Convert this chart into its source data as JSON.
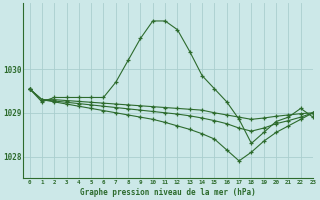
{
  "title": "Graphe pression niveau de la mer (hPa)",
  "background_color": "#cce8e8",
  "grid_color": "#aacece",
  "line_color": "#2d6b2d",
  "xlim": [
    -0.5,
    23
  ],
  "ylim": [
    1027.5,
    1031.5
  ],
  "yticks": [
    1028,
    1029,
    1030
  ],
  "xticks": [
    0,
    1,
    2,
    3,
    4,
    5,
    6,
    7,
    8,
    9,
    10,
    11,
    12,
    13,
    14,
    15,
    16,
    17,
    18,
    19,
    20,
    21,
    22,
    23
  ],
  "curves": [
    {
      "x": [
        0,
        1,
        2,
        3,
        4,
        5,
        6,
        7,
        8,
        9,
        10,
        11,
        12,
        13,
        14,
        15,
        16,
        17,
        18,
        19,
        20,
        21,
        22,
        23
      ],
      "y": [
        1029.55,
        1029.25,
        1029.35,
        1029.35,
        1029.35,
        1029.35,
        1029.35,
        1029.7,
        1030.2,
        1030.7,
        1031.1,
        1031.1,
        1030.9,
        1030.4,
        1029.85,
        1029.55,
        1029.25,
        1028.85,
        1028.3,
        1028.55,
        1028.8,
        1028.9,
        1029.1,
        1028.9
      ]
    },
    {
      "x": [
        0,
        1,
        2,
        3,
        4,
        5,
        6,
        7,
        8,
        9,
        10,
        11,
        12,
        13,
        14,
        15,
        16,
        17,
        18,
        19,
        20,
        21,
        22,
        23
      ],
      "y": [
        1029.55,
        1029.3,
        1029.3,
        1029.28,
        1029.26,
        1029.24,
        1029.22,
        1029.2,
        1029.18,
        1029.16,
        1029.14,
        1029.12,
        1029.1,
        1029.08,
        1029.06,
        1029.0,
        1028.95,
        1028.9,
        1028.85,
        1028.88,
        1028.92,
        1028.95,
        1028.98,
        1029.0
      ]
    },
    {
      "x": [
        0,
        1,
        2,
        3,
        4,
        5,
        6,
        7,
        8,
        9,
        10,
        11,
        12,
        13,
        14,
        15,
        16,
        17,
        18,
        19,
        20,
        21,
        22,
        23
      ],
      "y": [
        1029.55,
        1029.3,
        1029.27,
        1029.24,
        1029.21,
        1029.18,
        1029.15,
        1029.12,
        1029.09,
        1029.06,
        1029.03,
        1029.0,
        1028.97,
        1028.93,
        1028.88,
        1028.82,
        1028.75,
        1028.65,
        1028.58,
        1028.65,
        1028.75,
        1028.82,
        1028.9,
        1029.0
      ]
    },
    {
      "x": [
        0,
        1,
        2,
        3,
        4,
        5,
        6,
        7,
        8,
        9,
        10,
        11,
        12,
        13,
        14,
        15,
        16,
        17,
        18,
        19,
        20,
        21,
        22,
        23
      ],
      "y": [
        1029.55,
        1029.3,
        1029.25,
        1029.2,
        1029.15,
        1029.1,
        1029.05,
        1029.0,
        1028.95,
        1028.9,
        1028.85,
        1028.78,
        1028.7,
        1028.62,
        1028.52,
        1028.4,
        1028.15,
        1027.9,
        1028.1,
        1028.35,
        1028.55,
        1028.7,
        1028.85,
        1029.0
      ]
    }
  ]
}
